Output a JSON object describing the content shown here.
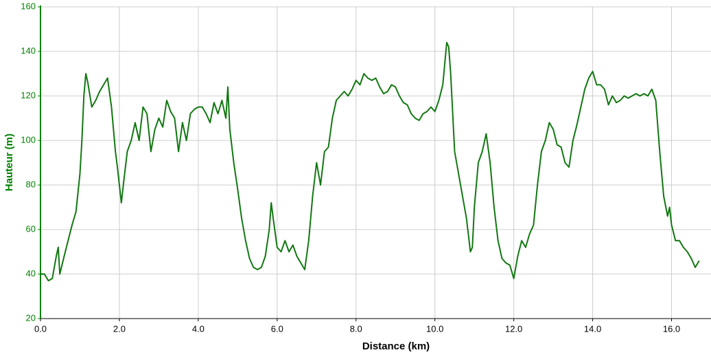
{
  "chart_data": {
    "type": "line",
    "xlabel": "Distance (km)",
    "ylabel": "Hauteur (m)",
    "color": "#117711",
    "axis_color": "#008000",
    "grid": true,
    "xlim": [
      0,
      17
    ],
    "ylim": [
      20,
      160
    ],
    "xticks": [
      {
        "value": 0,
        "label": "0.0"
      },
      {
        "value": 2,
        "label": "2.0"
      },
      {
        "value": 4,
        "label": "4.0"
      },
      {
        "value": 6,
        "label": "6.0"
      },
      {
        "value": 8,
        "label": "8.0"
      },
      {
        "value": 10,
        "label": "10.0"
      },
      {
        "value": 12,
        "label": "12.0"
      },
      {
        "value": 14,
        "label": "14.0"
      },
      {
        "value": 16,
        "label": "16.0"
      }
    ],
    "yticks": [
      20,
      40,
      60,
      80,
      100,
      120,
      140,
      160
    ],
    "x": [
      0,
      0.1,
      0.2,
      0.3,
      0.4,
      0.45,
      0.49,
      0.6,
      0.7,
      0.8,
      0.9,
      1.0,
      1.05,
      1.1,
      1.15,
      1.2,
      1.3,
      1.4,
      1.5,
      1.6,
      1.7,
      1.8,
      1.9,
      1.95,
      2.0,
      2.05,
      2.1,
      2.2,
      2.3,
      2.4,
      2.5,
      2.6,
      2.7,
      2.8,
      2.9,
      3.0,
      3.1,
      3.2,
      3.3,
      3.4,
      3.5,
      3.6,
      3.7,
      3.8,
      3.9,
      4.0,
      4.1,
      4.2,
      4.3,
      4.4,
      4.5,
      4.6,
      4.7,
      4.75,
      4.8,
      4.9,
      5.0,
      5.1,
      5.2,
      5.3,
      5.4,
      5.5,
      5.6,
      5.7,
      5.8,
      5.85,
      5.9,
      6.0,
      6.1,
      6.2,
      6.3,
      6.4,
      6.5,
      6.6,
      6.7,
      6.8,
      6.9,
      7.0,
      7.1,
      7.2,
      7.3,
      7.4,
      7.5,
      7.6,
      7.7,
      7.8,
      7.9,
      8.0,
      8.1,
      8.2,
      8.3,
      8.4,
      8.5,
      8.6,
      8.7,
      8.8,
      8.9,
      9.0,
      9.1,
      9.2,
      9.3,
      9.4,
      9.5,
      9.6,
      9.7,
      9.8,
      9.9,
      10.0,
      10.1,
      10.2,
      10.3,
      10.35,
      10.4,
      10.5,
      10.6,
      10.7,
      10.8,
      10.9,
      10.95,
      11.0,
      11.1,
      11.2,
      11.3,
      11.4,
      11.5,
      11.6,
      11.7,
      11.8,
      11.9,
      12.0,
      12.1,
      12.2,
      12.3,
      12.4,
      12.5,
      12.6,
      12.7,
      12.8,
      12.9,
      13.0,
      13.1,
      13.2,
      13.3,
      13.4,
      13.5,
      13.6,
      13.7,
      13.8,
      13.9,
      14.0,
      14.1,
      14.2,
      14.3,
      14.4,
      14.5,
      14.6,
      14.7,
      14.8,
      14.9,
      15.0,
      15.1,
      15.2,
      15.3,
      15.4,
      15.5,
      15.6,
      15.7,
      15.8,
      15.9,
      15.95,
      16.0,
      16.1,
      16.2,
      16.3,
      16.4,
      16.5,
      16.6,
      16.7
    ],
    "values": [
      40,
      40,
      37,
      38,
      48,
      52,
      40,
      48,
      55,
      62,
      68,
      85,
      100,
      120,
      130,
      126,
      115,
      118,
      122,
      125,
      128,
      115,
      95,
      88,
      80,
      72,
      80,
      95,
      100,
      108,
      100,
      115,
      112,
      95,
      105,
      110,
      106,
      118,
      113,
      110,
      95,
      108,
      100,
      112,
      114,
      115,
      115,
      112,
      108,
      117,
      112,
      118,
      110,
      124,
      105,
      90,
      78,
      65,
      55,
      47,
      43,
      42,
      43,
      48,
      60,
      72,
      65,
      52,
      50,
      55,
      50,
      53,
      48,
      45,
      42,
      55,
      75,
      90,
      80,
      95,
      97,
      110,
      118,
      120,
      122,
      120,
      123,
      127,
      125,
      130,
      128,
      127,
      128,
      124,
      121,
      122,
      125,
      124,
      120,
      117,
      116,
      112,
      110,
      109,
      112,
      113,
      115,
      113,
      118,
      125,
      144,
      142,
      130,
      95,
      85,
      75,
      65,
      50,
      52,
      70,
      90,
      95,
      103,
      90,
      70,
      55,
      47,
      45,
      44,
      38,
      48,
      55,
      52,
      58,
      62,
      80,
      95,
      100,
      108,
      105,
      98,
      97,
      90,
      88,
      100,
      107,
      115,
      123,
      128,
      131,
      125,
      125,
      123,
      116,
      120,
      117,
      118,
      120,
      119,
      120,
      121,
      120,
      121,
      120,
      123,
      118,
      95,
      75,
      66,
      70,
      62,
      55,
      55,
      52,
      50,
      47,
      43,
      46
    ]
  }
}
